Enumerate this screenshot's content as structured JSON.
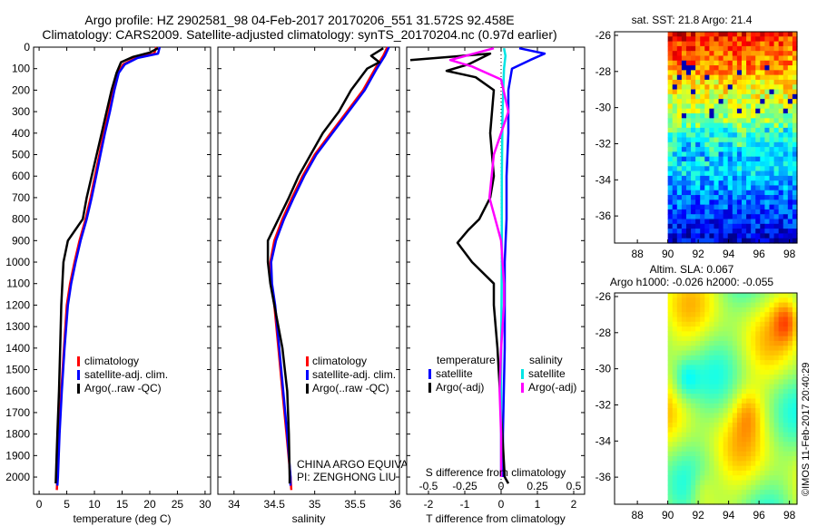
{
  "title": {
    "line1": "Argo profile: HZ 2902581_98 04-Feb-2017 20170206_551 31.572S 92.458E",
    "line2": "Climatology: CARS2009. Satellite-adjusted climatology: synTS_20170204.nc (0.97d earlier)"
  },
  "watermark": "©IMOS 11-Feb-2017 20:40:29",
  "chart_data": [
    {
      "id": "temperature",
      "type": "line",
      "xlabel": "temperature (deg C)",
      "ylabel": "",
      "xlim": [
        -1,
        31
      ],
      "ylim": [
        2080,
        0
      ],
      "xticks": [
        0,
        5,
        10,
        15,
        20,
        25,
        30
      ],
      "yticks": [
        0,
        100,
        200,
        300,
        400,
        500,
        600,
        700,
        800,
        900,
        1000,
        1100,
        1200,
        1300,
        1400,
        1500,
        1600,
        1700,
        1800,
        1900,
        2000
      ],
      "legend": [
        "climatology",
        "satellite-adj. clim.",
        "Argo(..raw -QC)"
      ],
      "series": [
        {
          "name": "climatology",
          "color": "#ff0000",
          "points": [
            [
              21.2,
              0
            ],
            [
              20.8,
              30
            ],
            [
              17.5,
              50
            ],
            [
              15.2,
              80
            ],
            [
              14.2,
              120
            ],
            [
              13.4,
              200
            ],
            [
              12.6,
              300
            ],
            [
              11.7,
              400
            ],
            [
              10.9,
              500
            ],
            [
              10.1,
              600
            ],
            [
              9.3,
              700
            ],
            [
              8.4,
              800
            ],
            [
              7.3,
              900
            ],
            [
              6.4,
              1000
            ],
            [
              5.6,
              1100
            ],
            [
              5.0,
              1200
            ],
            [
              4.5,
              1400
            ],
            [
              4.0,
              1600
            ],
            [
              3.6,
              1800
            ],
            [
              3.3,
              2000
            ],
            [
              3.2,
              2060
            ]
          ]
        },
        {
          "name": "satellite-adj. clim.",
          "color": "#0000ff",
          "points": [
            [
              21.8,
              0
            ],
            [
              21.5,
              30
            ],
            [
              17.8,
              50
            ],
            [
              15.5,
              80
            ],
            [
              14.4,
              120
            ],
            [
              13.6,
              200
            ],
            [
              12.8,
              300
            ],
            [
              11.9,
              400
            ],
            [
              11.1,
              500
            ],
            [
              10.3,
              600
            ],
            [
              9.5,
              700
            ],
            [
              8.6,
              800
            ],
            [
              7.5,
              900
            ],
            [
              6.6,
              1000
            ],
            [
              5.8,
              1100
            ],
            [
              5.2,
              1200
            ],
            [
              4.6,
              1400
            ],
            [
              4.1,
              1600
            ],
            [
              3.7,
              1800
            ],
            [
              3.4,
              2000
            ],
            [
              3.3,
              2040
            ]
          ]
        },
        {
          "name": "Argo(..raw -QC)",
          "color": "#000000",
          "points": [
            [
              21.5,
              5
            ],
            [
              20.0,
              25
            ],
            [
              17.0,
              45
            ],
            [
              14.8,
              70
            ],
            [
              14.0,
              120
            ],
            [
              13.1,
              200
            ],
            [
              12.2,
              300
            ],
            [
              11.3,
              400
            ],
            [
              10.4,
              500
            ],
            [
              9.5,
              600
            ],
            [
              8.6,
              700
            ],
            [
              7.9,
              800
            ],
            [
              5.2,
              900
            ],
            [
              4.4,
              1000
            ],
            [
              4.2,
              1100
            ],
            [
              4.0,
              1200
            ],
            [
              3.8,
              1400
            ],
            [
              3.6,
              1600
            ],
            [
              3.3,
              1800
            ],
            [
              3.1,
              1950
            ],
            [
              3.0,
              2030
            ]
          ]
        }
      ]
    },
    {
      "id": "salinity",
      "type": "line",
      "xlabel": "salinity",
      "ylabel": "",
      "xlim": [
        33.8,
        36.05
      ],
      "ylim": [
        2080,
        0
      ],
      "xticks": [
        34,
        34.5,
        35,
        35.5,
        36
      ],
      "legend": [
        "climatology",
        "satellite-adj. clim.",
        "Argo(..raw -QC)"
      ],
      "annotations": [
        "CHINA ARGO EQUIVALENT",
        "PI: ZENGHONG LIU"
      ],
      "series": [
        {
          "name": "climatology",
          "color": "#ff0000",
          "points": [
            [
              35.9,
              0
            ],
            [
              35.85,
              40
            ],
            [
              35.75,
              100
            ],
            [
              35.6,
              200
            ],
            [
              35.4,
              300
            ],
            [
              35.2,
              400
            ],
            [
              35.0,
              500
            ],
            [
              34.85,
              600
            ],
            [
              34.72,
              700
            ],
            [
              34.6,
              800
            ],
            [
              34.5,
              900
            ],
            [
              34.45,
              1000
            ],
            [
              34.46,
              1100
            ],
            [
              34.5,
              1200
            ],
            [
              34.55,
              1400
            ],
            [
              34.6,
              1600
            ],
            [
              34.65,
              1800
            ],
            [
              34.7,
              2000
            ],
            [
              34.71,
              2060
            ]
          ]
        },
        {
          "name": "satellite-adj. clim.",
          "color": "#0000ff",
          "points": [
            [
              35.92,
              0
            ],
            [
              35.87,
              40
            ],
            [
              35.77,
              100
            ],
            [
              35.62,
              200
            ],
            [
              35.42,
              300
            ],
            [
              35.22,
              400
            ],
            [
              35.02,
              500
            ],
            [
              34.87,
              600
            ],
            [
              34.74,
              700
            ],
            [
              34.62,
              800
            ],
            [
              34.52,
              900
            ],
            [
              34.46,
              1000
            ],
            [
              34.47,
              1100
            ],
            [
              34.51,
              1200
            ],
            [
              34.56,
              1400
            ],
            [
              34.61,
              1600
            ],
            [
              34.66,
              1800
            ],
            [
              34.7,
              2000
            ],
            [
              34.7,
              2040
            ]
          ]
        },
        {
          "name": "Argo(..raw -QC)",
          "color": "#000000",
          "points": [
            [
              35.85,
              5
            ],
            [
              35.7,
              40
            ],
            [
              35.8,
              70
            ],
            [
              35.65,
              100
            ],
            [
              35.45,
              200
            ],
            [
              35.3,
              300
            ],
            [
              35.1,
              400
            ],
            [
              34.95,
              500
            ],
            [
              34.8,
              600
            ],
            [
              34.68,
              700
            ],
            [
              34.55,
              800
            ],
            [
              34.42,
              900
            ],
            [
              34.42,
              1000
            ],
            [
              34.45,
              1100
            ],
            [
              34.5,
              1200
            ],
            [
              34.6,
              1400
            ],
            [
              34.66,
              1600
            ],
            [
              34.68,
              1800
            ],
            [
              34.69,
              2000
            ],
            [
              34.69,
              2030
            ]
          ]
        }
      ]
    },
    {
      "id": "differences",
      "type": "line",
      "xlabel": "T difference from climatology",
      "xlabel_top": "S difference from climatology",
      "xlim": [
        -2.6,
        2.3
      ],
      "ylim": [
        2080,
        0
      ],
      "xticks": [
        -2,
        -1,
        0,
        1,
        2
      ],
      "salinity_ticks": [
        "-0.5",
        "-0.25",
        "0",
        "0.25",
        "0.5"
      ],
      "legend_headers": [
        "temperature",
        "salinity"
      ],
      "legend": [
        "satellite",
        "Argo(-adj)",
        "satellite",
        "Argo(-adj)"
      ],
      "series": [
        {
          "name": "temperature satellite",
          "color": "#0000ff",
          "points": [
            [
              0.5,
              5
            ],
            [
              1.2,
              30
            ],
            [
              0.8,
              60
            ],
            [
              0.3,
              100
            ],
            [
              0.2,
              200
            ],
            [
              0.2,
              400
            ],
            [
              0.15,
              600
            ],
            [
              0.15,
              800
            ],
            [
              0.1,
              1000
            ],
            [
              0.1,
              1400
            ],
            [
              0.05,
              1800
            ],
            [
              0.05,
              2000
            ]
          ]
        },
        {
          "name": "temperature Argo(-adj)",
          "color": "#000000",
          "points": [
            [
              -2.5,
              60
            ],
            [
              -0.3,
              30
            ],
            [
              -0.9,
              80
            ],
            [
              -1.5,
              110
            ],
            [
              -0.7,
              140
            ],
            [
              -0.2,
              200
            ],
            [
              -0.3,
              400
            ],
            [
              -0.2,
              600
            ],
            [
              -0.3,
              700
            ],
            [
              -0.6,
              800
            ],
            [
              -0.9,
              850
            ],
            [
              -1.2,
              910
            ],
            [
              -0.8,
              1000
            ],
            [
              -0.2,
              1100
            ],
            [
              -0.2,
              1200
            ],
            [
              -0.1,
              1400
            ],
            [
              0.0,
              1700
            ],
            [
              0.1,
              2000
            ],
            [
              0.2,
              2030
            ]
          ]
        },
        {
          "name": "salinity satellite",
          "color": "#00e5e5",
          "points": [
            [
              0.02,
              5
            ],
            [
              0.03,
              40
            ],
            [
              0.02,
              100
            ],
            [
              0.01,
              300
            ],
            [
              0.005,
              600
            ],
            [
              0.005,
              1000
            ],
            [
              0.0,
              1500
            ],
            [
              0.0,
              2000
            ]
          ]
        },
        {
          "name": "salinity Argo(-adj)",
          "color": "#ff00ff",
          "points": [
            [
              -0.05,
              5
            ],
            [
              -0.35,
              60
            ],
            [
              -0.2,
              90
            ],
            [
              0.0,
              150
            ],
            [
              0.05,
              300
            ],
            [
              -0.05,
              500
            ],
            [
              -0.08,
              700
            ],
            [
              0.0,
              900
            ],
            [
              0.02,
              1100
            ],
            [
              0.02,
              1200
            ],
            [
              0.0,
              1400
            ],
            [
              -0.01,
              1600
            ],
            [
              0.0,
              1800
            ],
            [
              0.0,
              2000
            ]
          ]
        }
      ]
    },
    {
      "id": "sst-map",
      "type": "heatmap",
      "title": "sat. SST: 21.8  Argo: 21.4",
      "xlim": [
        86.5,
        98.5
      ],
      "ylim": [
        -37.5,
        -25.8
      ],
      "xticks": [
        88,
        90,
        92,
        94,
        96,
        98
      ],
      "yticks": [
        -26,
        -28,
        -30,
        -32,
        -34,
        -36
      ],
      "data_xmin": 90
    },
    {
      "id": "sla-map",
      "type": "heatmap",
      "title_line1": "Altim. SLA: 0.067",
      "title_line2": "Argo h1000: -0.026 h2000: -0.055",
      "xlim": [
        86.5,
        98.5
      ],
      "ylim": [
        -37.5,
        -25.8
      ],
      "xticks": [
        88,
        90,
        92,
        94,
        96,
        98
      ],
      "yticks": [
        -26,
        -28,
        -30,
        -32,
        -34,
        -36
      ],
      "data_xmin": 90
    }
  ]
}
